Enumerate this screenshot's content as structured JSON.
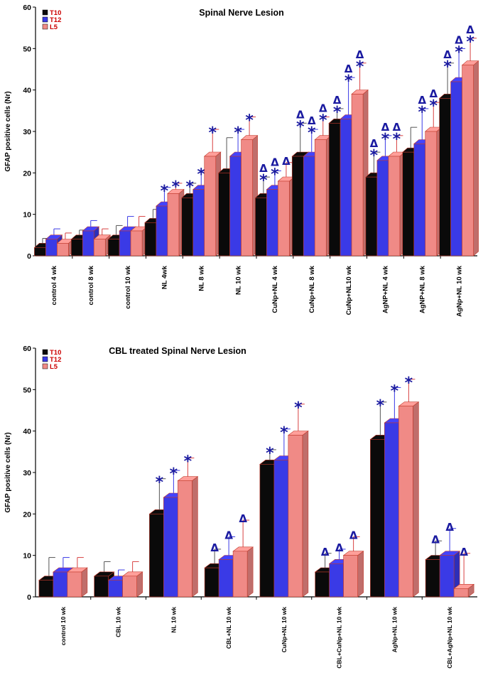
{
  "colors": {
    "T10": "#0a0a0a",
    "T12": "#3a3ae6",
    "L5": "#f08a86",
    "errT10": "#555555",
    "errT12": "#3a3ae6",
    "errL5": "#d84040",
    "marker": "#1a1aa0",
    "legendText": "#cc0000"
  },
  "chart_data": [
    {
      "type": "bar",
      "title": "Spinal Nerve Lesion",
      "xlabel": "",
      "ylabel": "GFAP positive cells (Nr)",
      "ylim": [
        0,
        60
      ],
      "yticks": [
        "0",
        "10",
        "20",
        "30",
        "40",
        "50",
        "60"
      ],
      "legend": "top-left",
      "categories": [
        "control 4 wk",
        "control 8 wk",
        "control 10 wk",
        "NL 4wk",
        "NL 8 wk",
        "NL 10 wk",
        "CuNp+NL 4 wk",
        "CuNp+NL 8 wk",
        "CuNp+NL10 wk",
        "AgNP+NL 4 wk",
        "AgNP+NL 8 wk",
        "AgNp+NL 10 wk"
      ],
      "series": [
        {
          "name": "T10",
          "values": [
            2,
            4,
            4,
            8,
            14,
            20,
            14,
            24,
            32,
            19,
            25,
            38
          ],
          "errors": [
            2.2,
            2.2,
            3.3,
            3.2,
            3.5,
            8.5,
            5.0,
            8.0,
            3.5,
            6.0,
            6.0,
            8.5
          ],
          "markers": [
            "",
            "",
            "",
            "",
            "*",
            "",
            "*",
            "*",
            "*",
            "*",
            "",
            "*"
          ],
          "deltas": [
            false,
            false,
            false,
            false,
            false,
            false,
            true,
            true,
            true,
            true,
            false,
            true
          ]
        },
        {
          "name": "T12",
          "values": [
            4,
            6,
            6,
            12,
            16,
            24,
            16,
            24,
            33,
            23,
            27,
            42
          ],
          "errors": [
            2.5,
            2.5,
            3.5,
            4.5,
            4.5,
            6.5,
            4.5,
            6.5,
            10.0,
            6.0,
            8.5,
            8.0
          ],
          "markers": [
            "",
            "",
            "",
            "*",
            "*",
            "*",
            "*",
            "*",
            "*",
            "*",
            "*",
            "*"
          ],
          "deltas": [
            false,
            false,
            false,
            false,
            false,
            false,
            true,
            true,
            true,
            true,
            true,
            true
          ]
        },
        {
          "name": "L5",
          "values": [
            3,
            4,
            6,
            15,
            24,
            28,
            18,
            28,
            39,
            24,
            30,
            46
          ],
          "errors": [
            2.5,
            2.5,
            3.5,
            2.5,
            6.5,
            5.5,
            4.5,
            5.5,
            7.5,
            5.0,
            7.0,
            6.5
          ],
          "markers": [
            "",
            "",
            "",
            "*",
            "*",
            "*",
            "",
            "*",
            "*",
            "*",
            "*",
            "*"
          ],
          "deltas": [
            false,
            false,
            false,
            false,
            false,
            false,
            true,
            true,
            true,
            true,
            true,
            true
          ]
        }
      ]
    },
    {
      "type": "bar",
      "title": "CBL treated Spinal Nerve Lesion",
      "xlabel": "",
      "ylabel": "GFAP positive cells (Nr)",
      "ylim": [
        0,
        60
      ],
      "yticks": [
        "0",
        "10",
        "20",
        "30",
        "40",
        "50",
        "60"
      ],
      "legend": "top-left",
      "categories": [
        "control 10 wk",
        "CBL 10 wk",
        "NL 10 wk",
        "CBL+NL 10 wk",
        "CuNp+NL 10 wk",
        "CBL+CuNp+NL 10 wk",
        "AgNp+NL 10 wk",
        "CBL+AgNp+NL 10 wk"
      ],
      "series": [
        {
          "name": "T10",
          "values": [
            4,
            5,
            20,
            7,
            32,
            6,
            38,
            9
          ],
          "errors": [
            5.5,
            3.5,
            8.5,
            4.5,
            3.5,
            4.5,
            9.0,
            4.5
          ],
          "markers": [
            "",
            "",
            "*",
            "",
            "*",
            "",
            "*",
            ""
          ],
          "deltas": [
            false,
            false,
            false,
            true,
            false,
            true,
            false,
            true
          ]
        },
        {
          "name": "T12",
          "values": [
            6,
            4,
            24,
            9,
            33,
            8,
            42,
            10
          ],
          "errors": [
            3.5,
            2.5,
            6.5,
            5.5,
            7.5,
            3.5,
            8.5,
            6.5
          ],
          "markers": [
            "",
            "",
            "*",
            "",
            "*",
            "",
            "*",
            ""
          ],
          "deltas": [
            false,
            false,
            false,
            true,
            false,
            true,
            false,
            true
          ]
        },
        {
          "name": "L5",
          "values": [
            6,
            5,
            28,
            11,
            39,
            10,
            46,
            2
          ],
          "errors": [
            3.5,
            3.5,
            5.5,
            7.5,
            7.5,
            4.5,
            6.5,
            8.5
          ],
          "markers": [
            "",
            "",
            "*",
            "",
            "*",
            "",
            "*",
            ""
          ],
          "deltas": [
            false,
            false,
            false,
            true,
            false,
            true,
            false,
            true
          ]
        }
      ]
    }
  ]
}
